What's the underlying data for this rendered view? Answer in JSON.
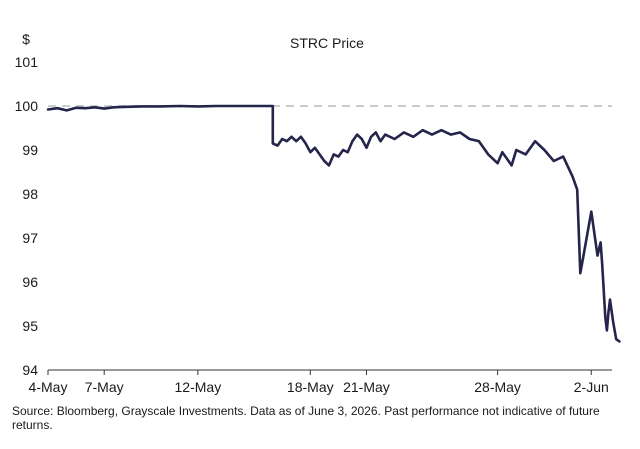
{
  "chart_data": {
    "type": "line",
    "title": "STRC Price",
    "ylabel": "$",
    "xlabel": "",
    "ylim": [
      94,
      101
    ],
    "yticks": [
      94,
      95,
      96,
      97,
      98,
      99,
      100,
      101
    ],
    "xlim": [
      "2026-05-04",
      "2026-06-03"
    ],
    "xticks": [
      {
        "date": "2026-05-04",
        "label": "4-May"
      },
      {
        "date": "2026-05-07",
        "label": "7-May"
      },
      {
        "date": "2026-05-12",
        "label": "12-May"
      },
      {
        "date": "2026-05-18",
        "label": "18-May"
      },
      {
        "date": "2026-05-21",
        "label": "21-May"
      },
      {
        "date": "2026-05-28",
        "label": "28-May"
      },
      {
        "date": "2026-06-02",
        "label": "2-Jun"
      }
    ],
    "grid": false,
    "reference_line": {
      "value": 100,
      "style": "dashed",
      "color": "#cccccc"
    },
    "series": [
      {
        "color": "#25244a",
        "points": [
          [
            "2026-05-04 00:00",
            99.92
          ],
          [
            "2026-05-04 12:00",
            99.95
          ],
          [
            "2026-05-05 00:00",
            99.9
          ],
          [
            "2026-05-05 12:00",
            99.96
          ],
          [
            "2026-05-06 00:00",
            99.95
          ],
          [
            "2026-05-06 12:00",
            99.97
          ],
          [
            "2026-05-07 00:00",
            99.94
          ],
          [
            "2026-05-07 12:00",
            99.97
          ],
          [
            "2026-05-08 00:00",
            99.98
          ],
          [
            "2026-05-09 00:00",
            99.99
          ],
          [
            "2026-05-10 00:00",
            99.99
          ],
          [
            "2026-05-11 00:00",
            100.0
          ],
          [
            "2026-05-12 00:00",
            99.99
          ],
          [
            "2026-05-13 00:00",
            100.0
          ],
          [
            "2026-05-14 00:00",
            100.0
          ],
          [
            "2026-05-15 00:00",
            100.0
          ],
          [
            "2026-05-16 00:00",
            100.0
          ],
          [
            "2026-05-16 00:01",
            99.15
          ],
          [
            "2026-05-16 06:00",
            99.1
          ],
          [
            "2026-05-16 12:00",
            99.25
          ],
          [
            "2026-05-16 18:00",
            99.2
          ],
          [
            "2026-05-17 00:00",
            99.3
          ],
          [
            "2026-05-17 06:00",
            99.2
          ],
          [
            "2026-05-17 12:00",
            99.3
          ],
          [
            "2026-05-17 18:00",
            99.15
          ],
          [
            "2026-05-18 00:00",
            98.95
          ],
          [
            "2026-05-18 06:00",
            99.05
          ],
          [
            "2026-05-18 12:00",
            98.9
          ],
          [
            "2026-05-18 18:00",
            98.75
          ],
          [
            "2026-05-19 00:00",
            98.65
          ],
          [
            "2026-05-19 06:00",
            98.9
          ],
          [
            "2026-05-19 12:00",
            98.85
          ],
          [
            "2026-05-19 18:00",
            99.0
          ],
          [
            "2026-05-20 00:00",
            98.95
          ],
          [
            "2026-05-20 06:00",
            99.2
          ],
          [
            "2026-05-20 12:00",
            99.35
          ],
          [
            "2026-05-20 18:00",
            99.25
          ],
          [
            "2026-05-21 00:00",
            99.05
          ],
          [
            "2026-05-21 06:00",
            99.3
          ],
          [
            "2026-05-21 12:00",
            99.4
          ],
          [
            "2026-05-21 18:00",
            99.2
          ],
          [
            "2026-05-22 00:00",
            99.35
          ],
          [
            "2026-05-22 12:00",
            99.25
          ],
          [
            "2026-05-23 00:00",
            99.4
          ],
          [
            "2026-05-23 12:00",
            99.3
          ],
          [
            "2026-05-24 00:00",
            99.45
          ],
          [
            "2026-05-24 12:00",
            99.35
          ],
          [
            "2026-05-25 00:00",
            99.45
          ],
          [
            "2026-05-25 12:00",
            99.35
          ],
          [
            "2026-05-26 00:00",
            99.4
          ],
          [
            "2026-05-26 12:00",
            99.25
          ],
          [
            "2026-05-27 00:00",
            99.2
          ],
          [
            "2026-05-27 12:00",
            98.9
          ],
          [
            "2026-05-28 00:00",
            98.7
          ],
          [
            "2026-05-28 06:00",
            98.95
          ],
          [
            "2026-05-28 12:00",
            98.8
          ],
          [
            "2026-05-28 18:00",
            98.65
          ],
          [
            "2026-05-29 00:00",
            99.0
          ],
          [
            "2026-05-29 12:00",
            98.9
          ],
          [
            "2026-05-30 00:00",
            99.2
          ],
          [
            "2026-05-30 12:00",
            99.0
          ],
          [
            "2026-05-31 00:00",
            98.75
          ],
          [
            "2026-05-31 12:00",
            98.85
          ],
          [
            "2026-06-01 00:00",
            98.4
          ],
          [
            "2026-06-01 06:00",
            98.1
          ],
          [
            "2026-06-01 10:00",
            96.2
          ],
          [
            "2026-06-01 14:00",
            96.6
          ],
          [
            "2026-06-01 18:00",
            97.0
          ],
          [
            "2026-06-02 00:00",
            97.6
          ],
          [
            "2026-06-02 04:00",
            97.1
          ],
          [
            "2026-06-02 08:00",
            96.6
          ],
          [
            "2026-06-02 12:00",
            96.9
          ],
          [
            "2026-06-02 14:00",
            96.4
          ],
          [
            "2026-06-02 18:00",
            95.2
          ],
          [
            "2026-06-02 20:00",
            94.9
          ],
          [
            "2026-06-02 22:00",
            95.3
          ],
          [
            "2026-06-03 00:00",
            95.6
          ],
          [
            "2026-06-03 04:00",
            95.1
          ],
          [
            "2026-06-03 08:00",
            94.7
          ],
          [
            "2026-06-03 12:00",
            94.65
          ]
        ]
      }
    ]
  },
  "footer": {
    "source": "Source: Bloomberg, Grayscale Investments. Data as of June 3, 2026. Past performance not indicative of future returns."
  }
}
